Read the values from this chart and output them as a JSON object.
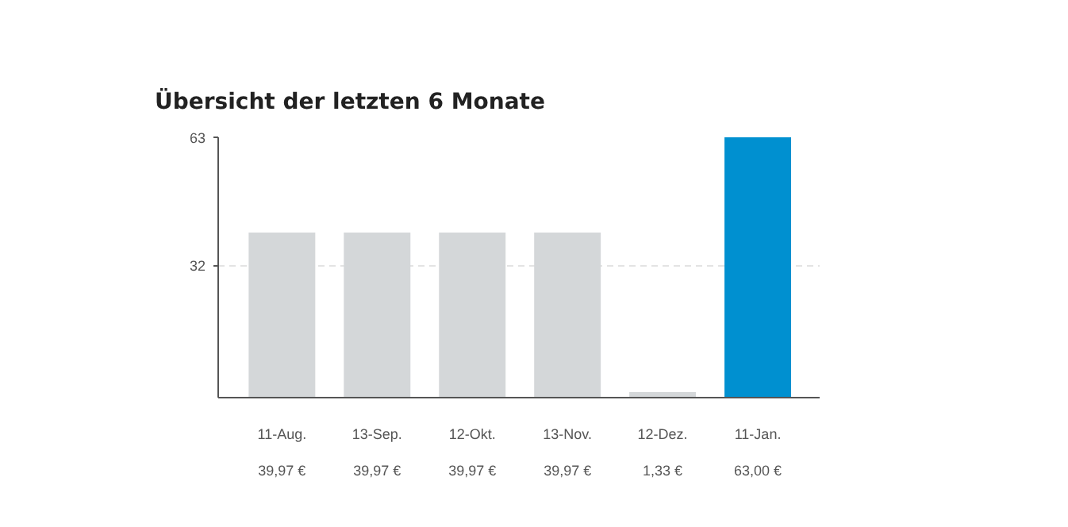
{
  "chart_data": {
    "type": "bar",
    "title": "Übersicht der letzten 6 Monate",
    "categories": [
      "11-Aug.",
      "13-Sep.",
      "12-Okt.",
      "13-Nov.",
      "12-Dez.",
      "11-Jan."
    ],
    "values": [
      39.97,
      39.97,
      39.97,
      39.97,
      1.33,
      63.0
    ],
    "colors": [
      "#d4d7d9",
      "#d4d7d9",
      "#d4d7d9",
      "#d4d7d9",
      "#d4d7d9",
      "#0090d0"
    ],
    "value_labels": [
      "39,97 €",
      "39,97 €",
      "39,97 €",
      "39,97 €",
      "1,33 €",
      "63,00 €"
    ],
    "ylim": [
      0,
      63
    ],
    "yticks": [
      32,
      63
    ],
    "grid": "y"
  }
}
